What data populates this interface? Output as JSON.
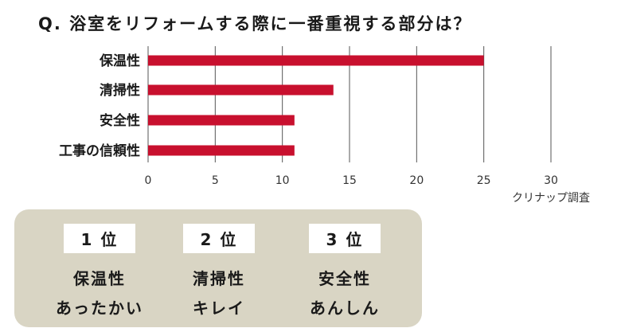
{
  "question": "Q. 浴室をリフォームする際に一番重視する部分は？",
  "source": "クリナップ調査",
  "colors": {
    "bar": "#c8102e",
    "grid": "#555555",
    "ranking_bg": "#d9d5c4"
  },
  "chart_data": {
    "type": "bar",
    "orientation": "horizontal",
    "categories": [
      "保温性",
      "清掃性",
      "安全性",
      "工事の信頼性"
    ],
    "values": [
      25,
      13.8,
      10.9,
      10.9
    ],
    "xlim": [
      0,
      30
    ],
    "xticks": [
      "0",
      "5",
      "10",
      "15",
      "20",
      "25",
      "30"
    ],
    "grid": true,
    "title": "",
    "xlabel": "",
    "ylabel": ""
  },
  "ranking": [
    {
      "rank": "1 位",
      "name": "保温性",
      "desc": "あったかい"
    },
    {
      "rank": "2 位",
      "name": "清掃性",
      "desc": "キレイ"
    },
    {
      "rank": "3 位",
      "name": "安全性",
      "desc": "あんしん"
    }
  ]
}
